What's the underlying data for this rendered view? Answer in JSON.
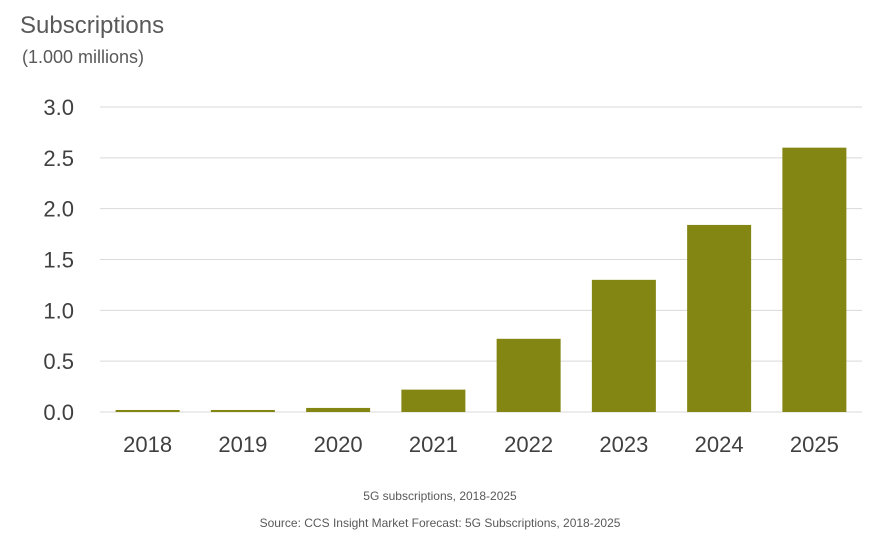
{
  "chart_data": {
    "type": "bar",
    "title": "Subscriptions",
    "ylabel": "(1.000 millions)",
    "xlabel": "",
    "categories": [
      "2018",
      "2019",
      "2020",
      "2021",
      "2022",
      "2023",
      "2024",
      "2025"
    ],
    "values": [
      0.02,
      0.02,
      0.04,
      0.22,
      0.72,
      1.3,
      1.84,
      2.6
    ],
    "ylim": [
      0,
      3.0
    ],
    "yticks": [
      "0.0",
      "0.5",
      "1.0",
      "1.5",
      "2.0",
      "2.5",
      "3.0"
    ],
    "grid": true,
    "bar_color": "#838613",
    "grid_color": "#d9d9d9"
  },
  "captions": {
    "caption": "5G subscriptions, 2018-2025",
    "source": "Source: CCS Insight Market Forecast: 5G Subscriptions, 2018-2025"
  }
}
